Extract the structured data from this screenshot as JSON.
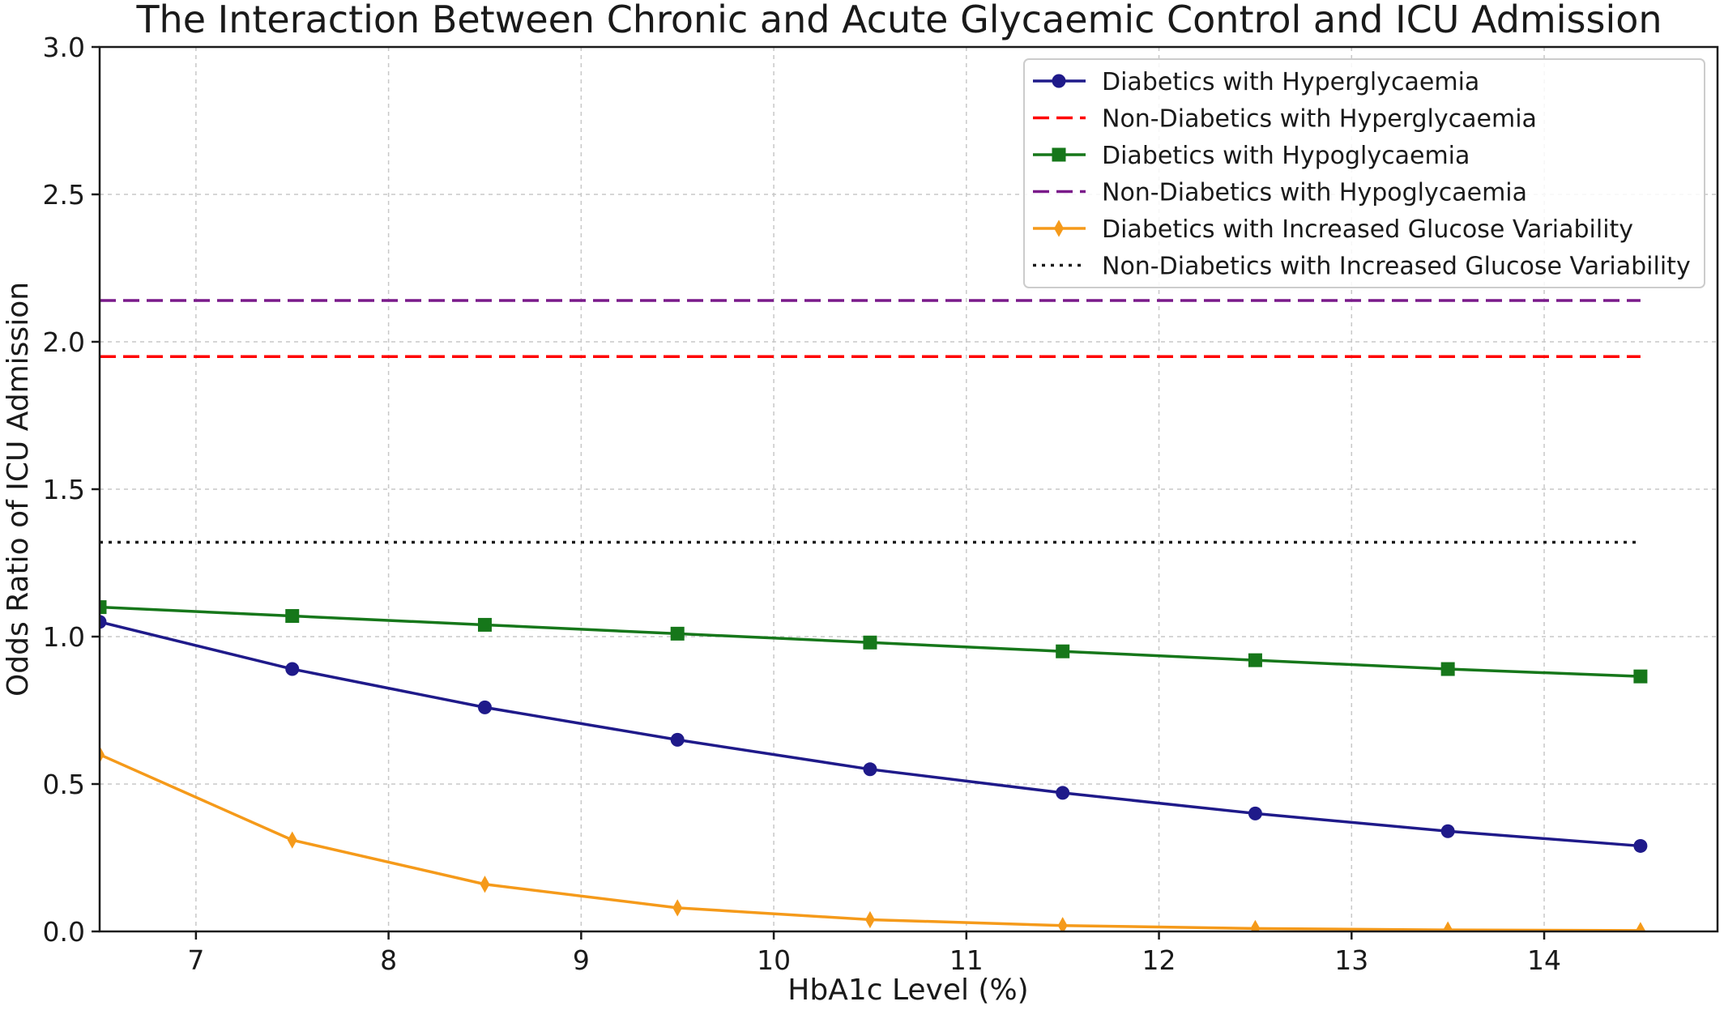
{
  "chart_data": {
    "type": "line",
    "title": "The Interaction Between Chronic and Acute Glycaemic Control and ICU Admission",
    "xlabel": "HbA1c Level (%)",
    "ylabel": "Odds Ratio of ICU Admission",
    "xlim": [
      6.5,
      14.9
    ],
    "ylim": [
      0,
      3.0
    ],
    "xticks": [
      7,
      8,
      9,
      10,
      11,
      12,
      13,
      14
    ],
    "yticks": [
      0.0,
      0.5,
      1.0,
      1.5,
      2.0,
      2.5,
      3.0
    ],
    "ytick_labels": [
      "0.0",
      "0.5",
      "1.0",
      "1.5",
      "2.0",
      "2.5",
      "3.0"
    ],
    "grid": true,
    "legend_position": "top-right",
    "x": [
      6.5,
      7.5,
      8.5,
      9.5,
      10.5,
      11.5,
      12.5,
      13.5,
      14.5
    ],
    "series": [
      {
        "name": "Diabetics with Hyperglycaemia",
        "kind": "markers",
        "marker": "circle",
        "linestyle": "solid",
        "color": "#1f1a8a",
        "values": [
          1.05,
          0.89,
          0.76,
          0.65,
          0.55,
          0.47,
          0.4,
          0.34,
          0.29
        ]
      },
      {
        "name": "Non-Diabetics with Hyperglycaemia",
        "kind": "constant",
        "linestyle": "dashed",
        "color": "#ff0000",
        "value": 1.95
      },
      {
        "name": "Diabetics with Hypoglycaemia",
        "kind": "markers",
        "marker": "square",
        "linestyle": "solid",
        "color": "#16771a",
        "values": [
          1.1,
          1.07,
          1.04,
          1.01,
          0.98,
          0.95,
          0.92,
          0.89,
          0.865
        ]
      },
      {
        "name": "Non-Diabetics with Hypoglycaemia",
        "kind": "constant",
        "linestyle": "dashed",
        "color": "#7a1a8a",
        "value": 2.14
      },
      {
        "name": "Diabetics with Increased Glucose Variability",
        "kind": "markers",
        "marker": "diamond",
        "linestyle": "solid",
        "color": "#f59a1a",
        "values": [
          0.6,
          0.31,
          0.16,
          0.08,
          0.04,
          0.02,
          0.01,
          0.005,
          0.003
        ]
      },
      {
        "name": "Non-Diabetics with Increased Glucose Variability",
        "kind": "constant",
        "linestyle": "dotted",
        "color": "#1a1a1a",
        "value": 1.32
      }
    ]
  }
}
